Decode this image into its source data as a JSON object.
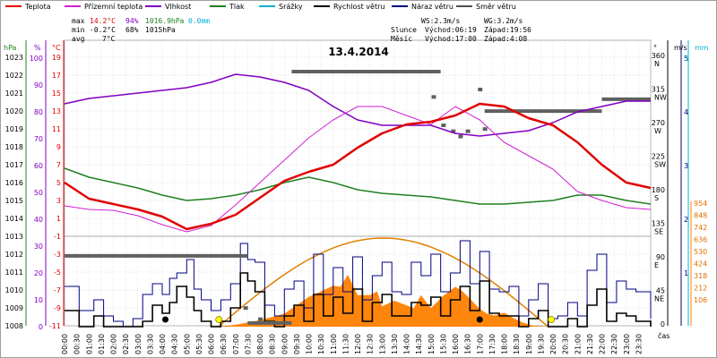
{
  "chart_data": {
    "type": "line",
    "title": "13.4.2014",
    "legend": [
      {
        "key": "temp",
        "label": "Teplota",
        "color": "#e00000"
      },
      {
        "key": "dew",
        "label": "Přízemní teplota",
        "color": "#d020d0"
      },
      {
        "key": "hum",
        "label": "Vlhkost",
        "color": "#8000c0"
      },
      {
        "key": "press",
        "label": "Tlak",
        "color": "#208020"
      },
      {
        "key": "rain",
        "label": "Srážky",
        "color": "#00b0d0"
      },
      {
        "key": "wind",
        "label": "Rychlost větru",
        "color": "#000000"
      },
      {
        "key": "gust",
        "label": "Náraz větru",
        "color": "#000080"
      },
      {
        "key": "dir",
        "label": "Směr větru",
        "color": "#505050"
      }
    ],
    "stats": {
      "max_label": "max",
      "max_temp": "14.2°C",
      "max_hum": "94%",
      "max_press": "1016.9hPa",
      "rain": "0.0mm",
      "min_label": "min",
      "min_temp": "-0.2°C",
      "min_hum": "68%",
      "min_press": "1015hPa",
      "avg_label": "avg",
      "avg_temp": "7°C"
    },
    "info": {
      "ws": "WS:2.3m/s",
      "wg": "WG:3.2m/s",
      "sun_label": "Slunce",
      "sun_rise": "Východ:06:19",
      "sun_set": "Západ:19:56",
      "moon_label": "Měsíc",
      "moon_rise": "Východ:17:00",
      "moon_set": "Západ:4:08"
    },
    "axis_units": {
      "press": "hPa",
      "hum": "%",
      "temp": "°C",
      "dir": "°",
      "speed": "m/s",
      "rain": "mm",
      "solar_hint": "čas"
    },
    "press_ticks": [
      1023,
      1022,
      1021,
      1020,
      1019,
      1018,
      1017,
      1016,
      1015,
      1014,
      1013,
      1012,
      1011,
      1010,
      1009,
      1008
    ],
    "hum_ticks": [
      100,
      90,
      80,
      70,
      60,
      50,
      40,
      30,
      20,
      10,
      0
    ],
    "temp_ticks": [
      19,
      17,
      15,
      13,
      11,
      9,
      7,
      5,
      3,
      1,
      -1,
      -3,
      -5,
      -7,
      -9,
      -11
    ],
    "dir_ticks": [
      {
        "deg": "360",
        "label": "N"
      },
      {
        "deg": "315",
        "label": "NW"
      },
      {
        "deg": "270",
        "label": "W"
      },
      {
        "deg": "225",
        "label": "SW"
      },
      {
        "deg": "180",
        "label": "S"
      },
      {
        "deg": "135",
        "label": "SE"
      },
      {
        "deg": "90",
        "label": "E"
      },
      {
        "deg": "45",
        "label": "NE"
      },
      {
        "deg": "0",
        "label": ""
      }
    ],
    "speed_ticks": [
      "5",
      "4",
      "3",
      "2",
      "1"
    ],
    "rain_ticks": [
      "1"
    ],
    "solar_ticks": [
      954,
      848,
      742,
      636,
      530,
      424,
      318,
      212,
      106
    ],
    "x_ticks": [
      "00:00",
      "00:30",
      "01:00",
      "01:30",
      "02:00",
      "02:30",
      "03:00",
      "03:30",
      "04:00",
      "04:30",
      "05:00",
      "05:30",
      "06:00",
      "06:30",
      "07:00",
      "07:30",
      "08:00",
      "08:30",
      "09:00",
      "09:30",
      "10:00",
      "10:30",
      "11:00",
      "11:30",
      "12:00",
      "12:30",
      "13:00",
      "13:30",
      "14:00",
      "14:30",
      "15:00",
      "15:30",
      "16:00",
      "16:30",
      "17:00",
      "17:30",
      "18:00",
      "18:30",
      "19:00",
      "19:30",
      "20:00",
      "20:30",
      "21:00",
      "21:30",
      "22:00",
      "22:30",
      "23:00",
      "23:30"
    ],
    "hours": [
      0,
      1,
      2,
      3,
      4,
      5,
      6,
      7,
      8,
      9,
      10,
      11,
      12,
      13,
      14,
      15,
      16,
      17,
      18,
      19,
      20,
      21,
      22,
      23,
      24
    ],
    "temp": [
      5.0,
      3.2,
      2.6,
      2.0,
      1.2,
      -0.2,
      0.4,
      1.4,
      3.3,
      5.2,
      6.2,
      7.0,
      8.9,
      10.5,
      11.5,
      11.8,
      12.5,
      13.8,
      13.5,
      12.2,
      11.4,
      9.5,
      7.0,
      5.0,
      4.4
    ],
    "dew": [
      2.4,
      2.0,
      1.9,
      1.3,
      0.3,
      -0.5,
      0.2,
      2.5,
      5.0,
      7.5,
      10.0,
      12.0,
      13.5,
      13.5,
      12.5,
      11.5,
      13.5,
      12.0,
      9.5,
      8.0,
      6.5,
      4.0,
      3.0,
      2.2,
      2.0
    ],
    "hum": [
      83,
      85,
      86,
      87,
      88,
      89,
      91,
      94,
      93,
      91,
      88,
      82,
      77,
      75,
      75,
      75,
      72,
      71,
      72,
      73,
      76,
      80,
      82,
      84,
      84
    ],
    "press": [
      1016.8,
      1016.3,
      1016.0,
      1015.7,
      1015.3,
      1015.0,
      1015.1,
      1015.3,
      1015.6,
      1016.0,
      1016.3,
      1016.0,
      1015.6,
      1015.4,
      1015.3,
      1015.2,
      1015.0,
      1014.8,
      1014.8,
      1014.9,
      1015.0,
      1015.3,
      1015.3,
      1015.0,
      1014.8
    ],
    "solar_x": [
      6.3,
      7,
      8,
      9,
      10,
      10.5,
      11,
      11.3,
      11.6,
      12,
      12.5,
      12.8,
      13,
      13.5,
      14,
      14.3,
      14.6,
      15,
      15.5,
      16,
      16.3,
      16.6,
      17,
      17.3,
      17.6,
      18,
      18.4,
      18.8,
      19.2,
      19.8
    ],
    "solar": [
      0,
      20,
      70,
      140,
      320,
      380,
      440,
      430,
      560,
      340,
      340,
      380,
      220,
      280,
      230,
      200,
      340,
      200,
      330,
      430,
      380,
      300,
      190,
      140,
      120,
      150,
      90,
      40,
      10,
      0
    ],
    "solar_theory_peak": 954,
    "wind_x": [
      0,
      0.6,
      1.2,
      1.6,
      2,
      2.4,
      2.8,
      3.2,
      3.6,
      4,
      4.3,
      4.6,
      5,
      5.3,
      5.6,
      6,
      6.4,
      6.8,
      7.2,
      7.5,
      7.8,
      8.2,
      8.6,
      9,
      9.4,
      9.8,
      10.2,
      10.6,
      11,
      11.4,
      11.8,
      12.2,
      12.6,
      13,
      13.4,
      13.8,
      14.2,
      14.6,
      15,
      15.4,
      15.8,
      16.2,
      16.6,
      17,
      17.4,
      17.8,
      18.2,
      18.6,
      19,
      19.4,
      19.8,
      20.2,
      20.6,
      21,
      21.4,
      21.8,
      22.2,
      22.6,
      23,
      23.4,
      24
    ],
    "wind": [
      0.6,
      0,
      0.4,
      0,
      0,
      0,
      0,
      0.2,
      0.8,
      0.5,
      0.9,
      1.5,
      1.1,
      0.6,
      0.2,
      0,
      0.2,
      0.7,
      2.0,
      1.7,
      1.3,
      0.2,
      0,
      0.4,
      0.8,
      0.2,
      1.2,
      0.4,
      1.1,
      0.5,
      1.4,
      0.2,
      0.9,
      1.2,
      0.4,
      0.4,
      0.9,
      0.8,
      1.1,
      0.4,
      1.0,
      1.5,
      0.6,
      1.7,
      0.5,
      0.4,
      0.4,
      0,
      0.3,
      0.6,
      0,
      0,
      0.3,
      0,
      0.8,
      1.4,
      0.2,
      0.5,
      0.4,
      0.2,
      0
    ],
    "gust": [
      1.5,
      0.6,
      1.0,
      0.4,
      0.2,
      0,
      0.3,
      1.2,
      1.6,
      1.2,
      1.8,
      2.0,
      2.5,
      1.4,
      1.0,
      0.6,
      1.0,
      1.6,
      3.1,
      2.5,
      2.4,
      0.8,
      0.4,
      1.4,
      1.7,
      0.7,
      2.7,
      1.2,
      2.2,
      1.3,
      2.6,
      1.0,
      1.9,
      2.4,
      1.3,
      1.2,
      2.4,
      1.9,
      2.7,
      1.3,
      2.0,
      3.2,
      1.6,
      2.8,
      1.4,
      1.3,
      1.5,
      0.4,
      1.0,
      1.6,
      0.3,
      0.4,
      0.9,
      0.4,
      2.1,
      2.7,
      0.9,
      1.7,
      1.4,
      1.3,
      0.3
    ],
    "dir_segments": [
      {
        "x1": 0,
        "x2": 7.5,
        "deg": 95
      },
      {
        "x1": 9.3,
        "x2": 15.4,
        "deg": 342
      },
      {
        "x1": 17.2,
        "x2": 22.0,
        "deg": 289
      },
      {
        "x1": 22.0,
        "x2": 24,
        "deg": 305
      },
      {
        "x1": 7.5,
        "x2": 9.3,
        "deg": 5
      }
    ],
    "dir_points": [
      {
        "x": 15.1,
        "deg": 308
      },
      {
        "x": 15.5,
        "deg": 270
      },
      {
        "x": 15.9,
        "deg": 262
      },
      {
        "x": 16.2,
        "deg": 255
      },
      {
        "x": 16.5,
        "deg": 262
      },
      {
        "x": 17.0,
        "deg": 318
      },
      {
        "x": 17.2,
        "deg": 265
      },
      {
        "x": 7.4,
        "deg": 25
      },
      {
        "x": 8.0,
        "deg": 10
      }
    ],
    "sun_events": [
      {
        "x": 6.32,
        "kind": "sunrise"
      },
      {
        "x": 19.93,
        "kind": "sunset"
      }
    ],
    "moon_events": [
      {
        "x": 4.13,
        "kind": "moonset"
      },
      {
        "x": 17.0,
        "kind": "moonrise"
      }
    ],
    "colors": {
      "solar_fill": "#ff8000",
      "solar_curve": "#e08000",
      "grid": "#c8c8c8",
      "dir": "#606060"
    }
  }
}
